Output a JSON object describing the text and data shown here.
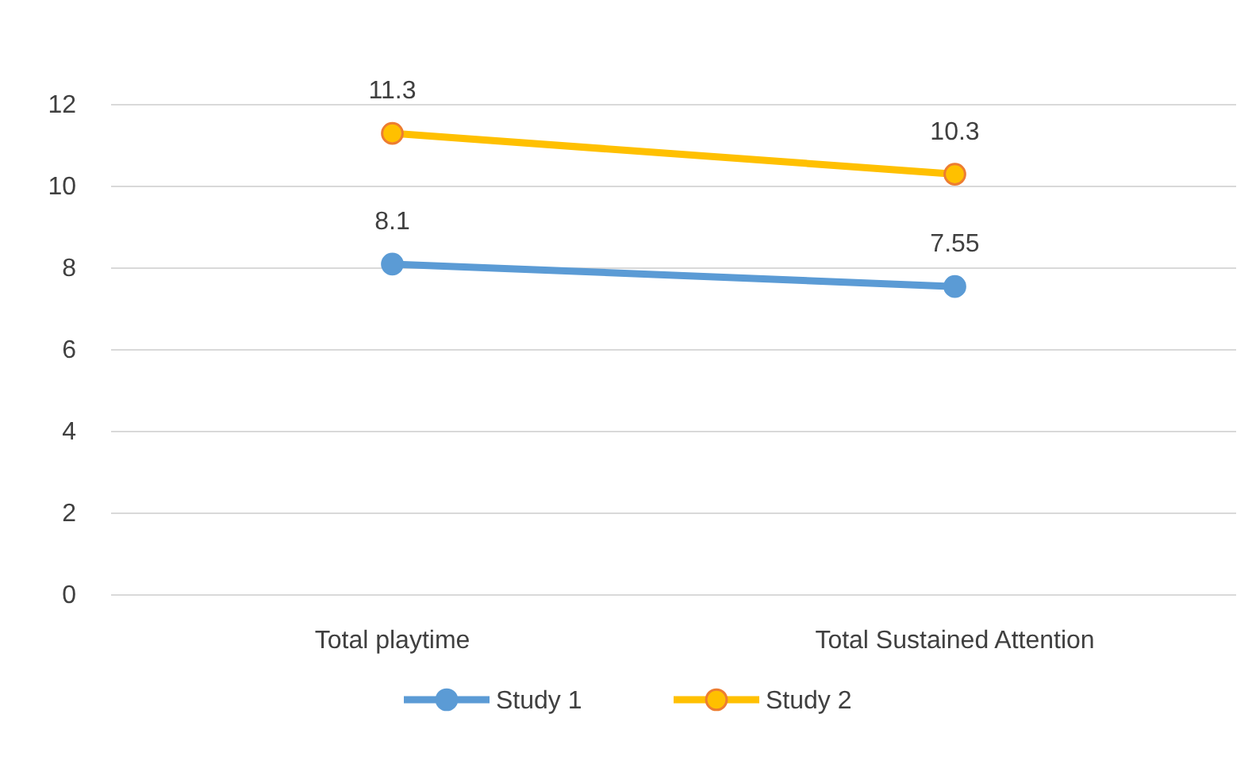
{
  "chart_data": {
    "type": "line",
    "categories": [
      "Total playtime",
      "Total Sustained Attention"
    ],
    "series": [
      {
        "name": "Study 1",
        "color": "#5b9bd5",
        "values": [
          8.1,
          7.55
        ]
      },
      {
        "name": "Study 2",
        "color": "#ffc000",
        "values": [
          11.3,
          10.3
        ]
      }
    ],
    "ylim": [
      0,
      12
    ],
    "yticks": [
      0,
      2,
      4,
      6,
      8,
      10,
      12
    ],
    "grid": "y",
    "legend": "bottom",
    "marker": "circle",
    "data_labels": true
  }
}
